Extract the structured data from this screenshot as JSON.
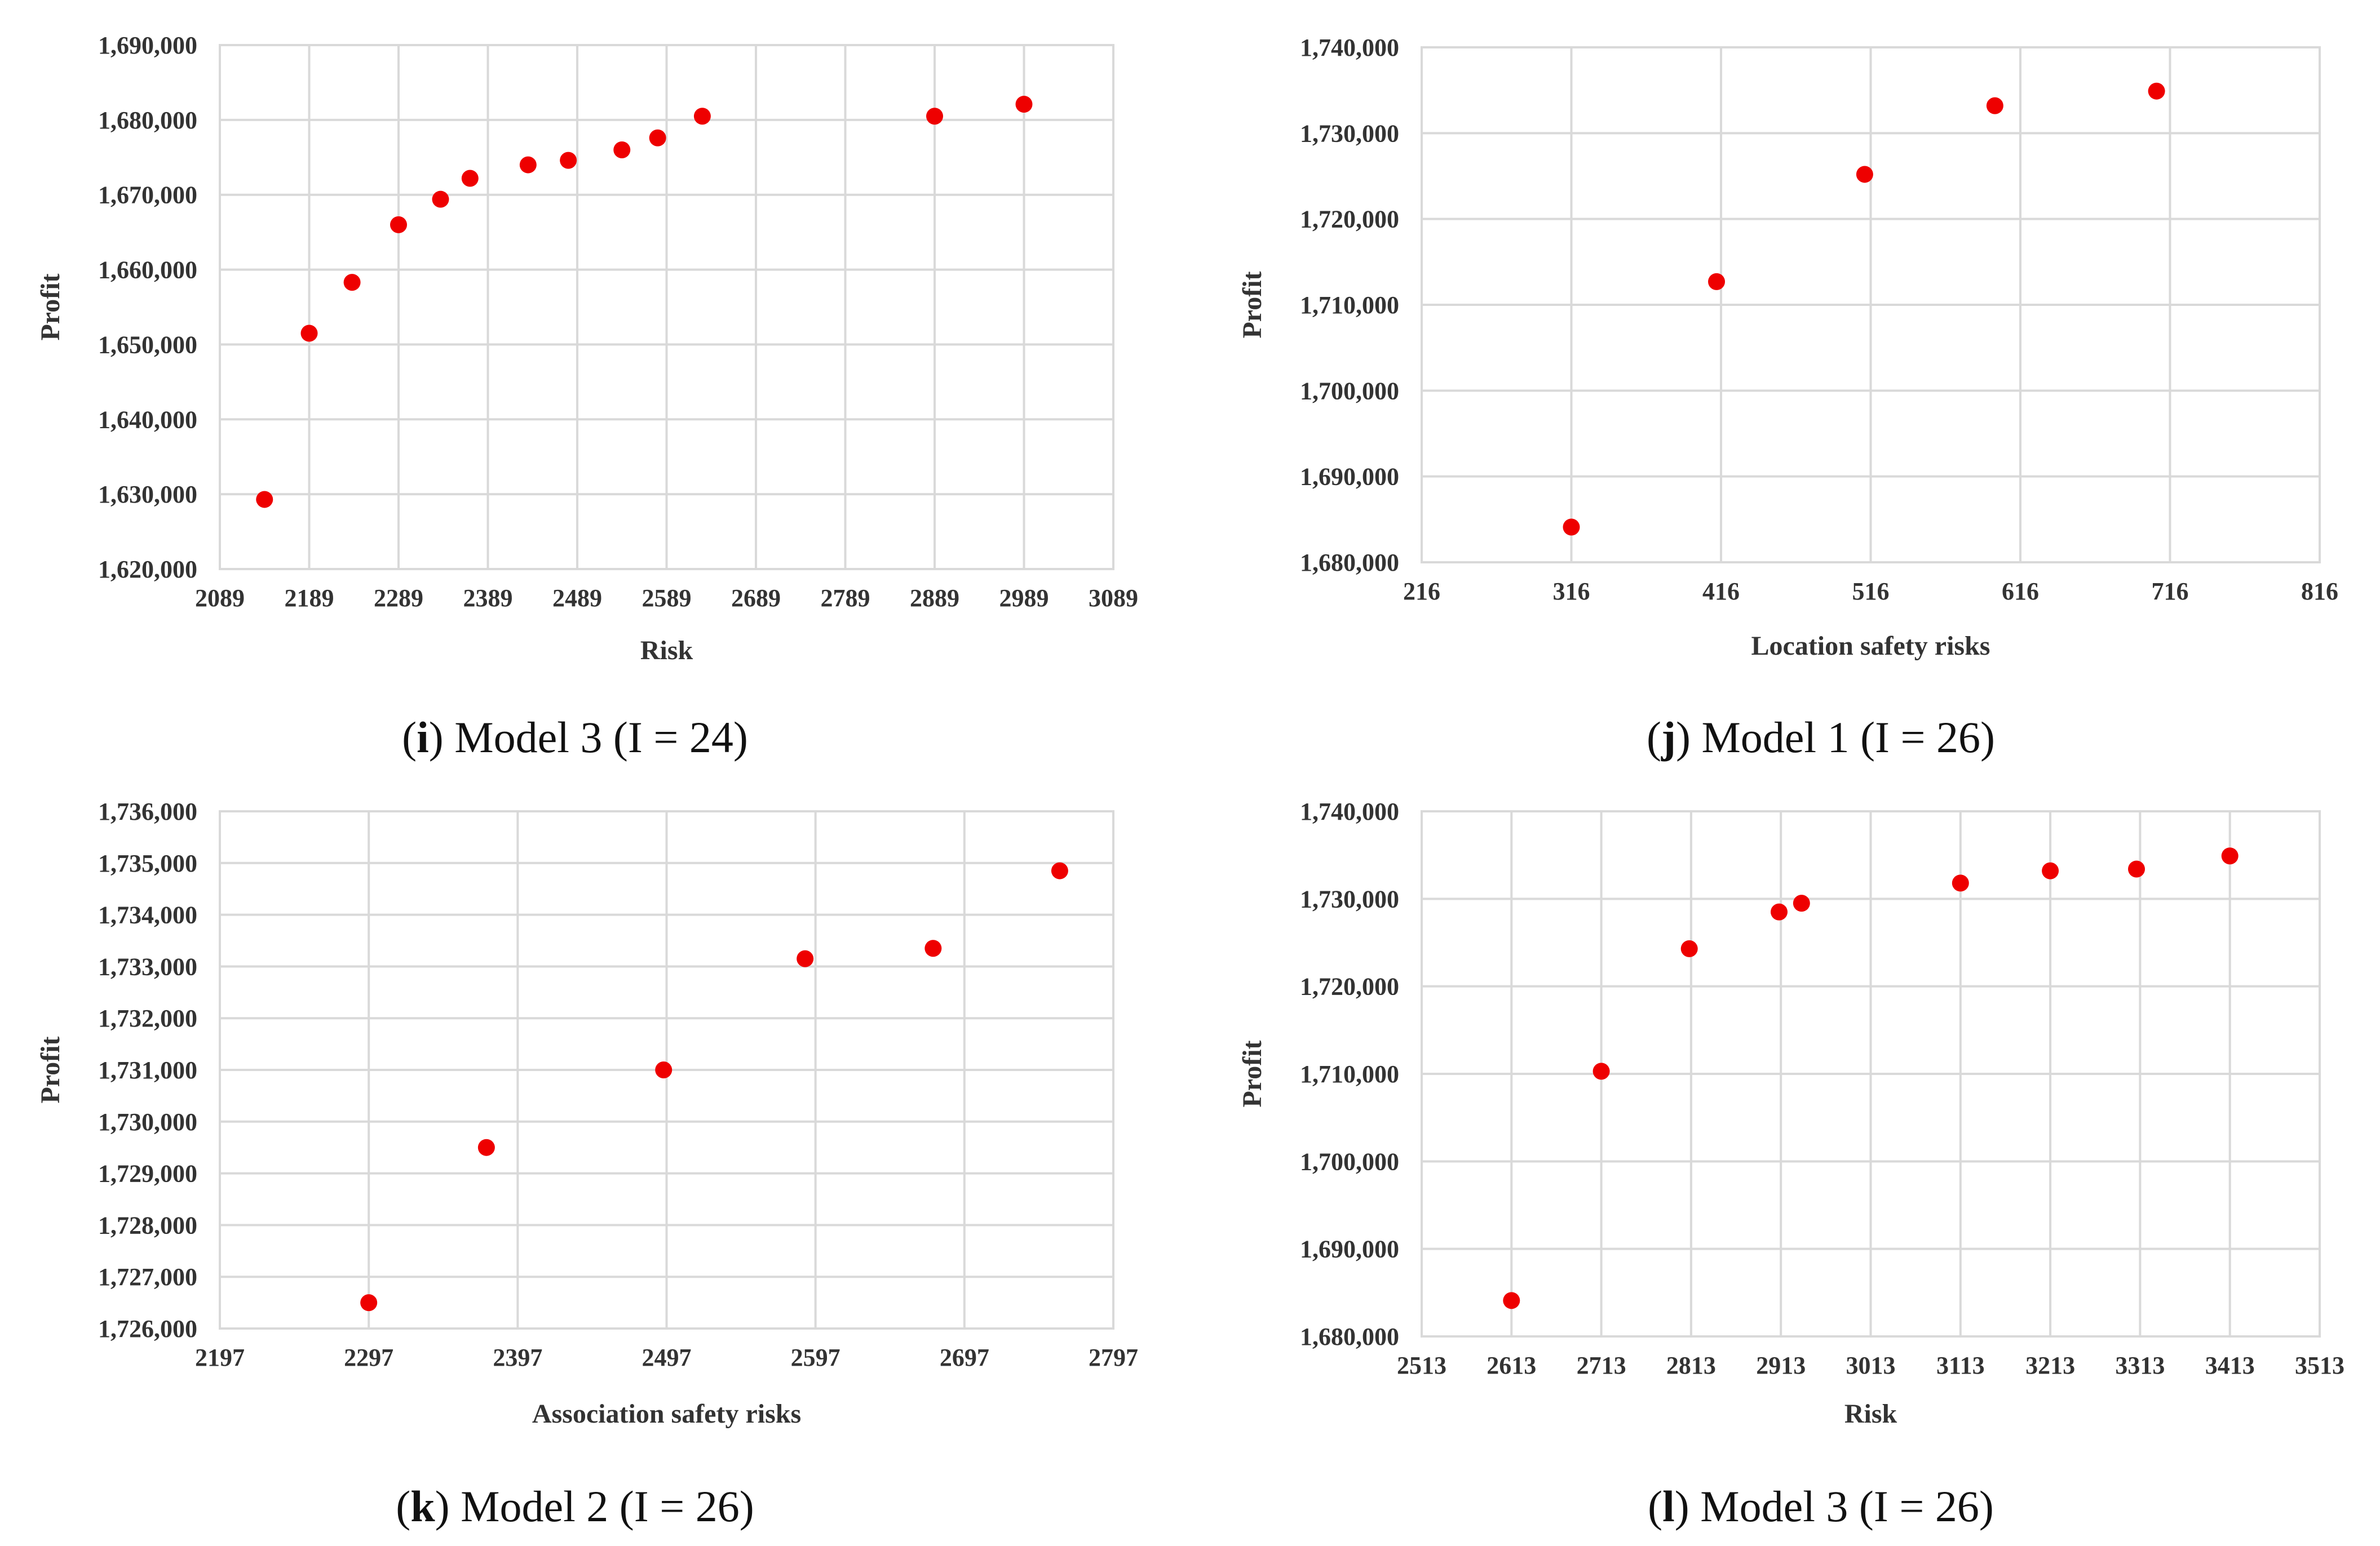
{
  "point_color": "#ee0000",
  "grid_color": "#d9d9d9",
  "chart_data": [
    {
      "type": "scatter",
      "xlabel": "Risk",
      "ylabel": "Profit",
      "xlim": [
        2089,
        3089
      ],
      "ylim": [
        1620000,
        1690000
      ],
      "xticks": [
        "2089",
        "2189",
        "2289",
        "2389",
        "2489",
        "2589",
        "2689",
        "2789",
        "2889",
        "2989",
        "3089"
      ],
      "yticks": [
        "1,690,000",
        "1,680,000",
        "1,670,000",
        "1,660,000",
        "1,650,000",
        "1,640,000",
        "1,630,000",
        "1,620,000"
      ],
      "caption": {
        "letter": "i",
        "open": "(",
        "close": ")",
        "text": " Model 3 (I = 24)"
      },
      "points": [
        {
          "x": 2139,
          "y": 1629300
        },
        {
          "x": 2189,
          "y": 1651500
        },
        {
          "x": 2237,
          "y": 1658300
        },
        {
          "x": 2289,
          "y": 1666000
        },
        {
          "x": 2336,
          "y": 1669400
        },
        {
          "x": 2369,
          "y": 1672200
        },
        {
          "x": 2434,
          "y": 1674000
        },
        {
          "x": 2479,
          "y": 1674600
        },
        {
          "x": 2539,
          "y": 1676000
        },
        {
          "x": 2579,
          "y": 1677600
        },
        {
          "x": 2629,
          "y": 1680500
        },
        {
          "x": 2889,
          "y": 1680500
        },
        {
          "x": 2989,
          "y": 1682100
        }
      ]
    },
    {
      "type": "scatter",
      "xlabel": "Location safety risks",
      "ylabel": "Profit",
      "xlim": [
        216,
        816
      ],
      "ylim": [
        1680000,
        1740000
      ],
      "xticks": [
        "216",
        "316",
        "416",
        "516",
        "616",
        "716",
        "816"
      ],
      "yticks": [
        "1,740,000",
        "1,730,000",
        "1,720,000",
        "1,710,000",
        "1,700,000",
        "1,690,000",
        "1,680,000"
      ],
      "caption": {
        "letter": "j",
        "open": "(",
        "close": ")",
        "text": " Model 1 (I = 26)"
      },
      "points": [
        {
          "x": 316,
          "y": 1684100
        },
        {
          "x": 413,
          "y": 1712700
        },
        {
          "x": 512,
          "y": 1725200
        },
        {
          "x": 599,
          "y": 1733200
        },
        {
          "x": 707,
          "y": 1734900
        }
      ]
    },
    {
      "type": "scatter",
      "xlabel": "Association safety risks",
      "ylabel": "Profit",
      "xlim": [
        2197,
        2797
      ],
      "ylim": [
        1726000,
        1736000
      ],
      "xticks": [
        "2197",
        "2297",
        "2397",
        "2497",
        "2597",
        "2697",
        "2797"
      ],
      "yticks": [
        "1,736,000",
        "1,735,000",
        "1,734,000",
        "1,733,000",
        "1,732,000",
        "1,731,000",
        "1,730,000",
        "1,729,000",
        "1,728,000",
        "1,727,000",
        "1,726,000"
      ],
      "caption": {
        "letter": "k",
        "open": "(",
        "close": ")",
        "text": " Model 2 (I = 26)"
      },
      "points": [
        {
          "x": 2297,
          "y": 1726500
        },
        {
          "x": 2376,
          "y": 1729500
        },
        {
          "x": 2495,
          "y": 1731000
        },
        {
          "x": 2590,
          "y": 1733150
        },
        {
          "x": 2676,
          "y": 1733350
        },
        {
          "x": 2761,
          "y": 1734850
        }
      ]
    },
    {
      "type": "scatter",
      "xlabel": "Risk",
      "ylabel": "Profit",
      "xlim": [
        2513,
        3513
      ],
      "ylim": [
        1680000,
        1740000
      ],
      "xticks": [
        "2513",
        "2613",
        "2713",
        "2813",
        "2913",
        "3013",
        "3113",
        "3213",
        "3313",
        "3413",
        "3513"
      ],
      "yticks": [
        "1,740,000",
        "1,730,000",
        "1,720,000",
        "1,710,000",
        "1,700,000",
        "1,690,000",
        "1,680,000"
      ],
      "caption": {
        "letter": "l",
        "open": "(",
        "close": ")",
        "text": " Model 3 (I = 26)"
      },
      "points": [
        {
          "x": 2613,
          "y": 1684100
        },
        {
          "x": 2713,
          "y": 1710300
        },
        {
          "x": 2811,
          "y": 1724300
        },
        {
          "x": 2911,
          "y": 1728500
        },
        {
          "x": 2936,
          "y": 1729500
        },
        {
          "x": 3113,
          "y": 1731800
        },
        {
          "x": 3213,
          "y": 1733200
        },
        {
          "x": 3309,
          "y": 1733400
        },
        {
          "x": 3413,
          "y": 1734900
        }
      ]
    }
  ]
}
